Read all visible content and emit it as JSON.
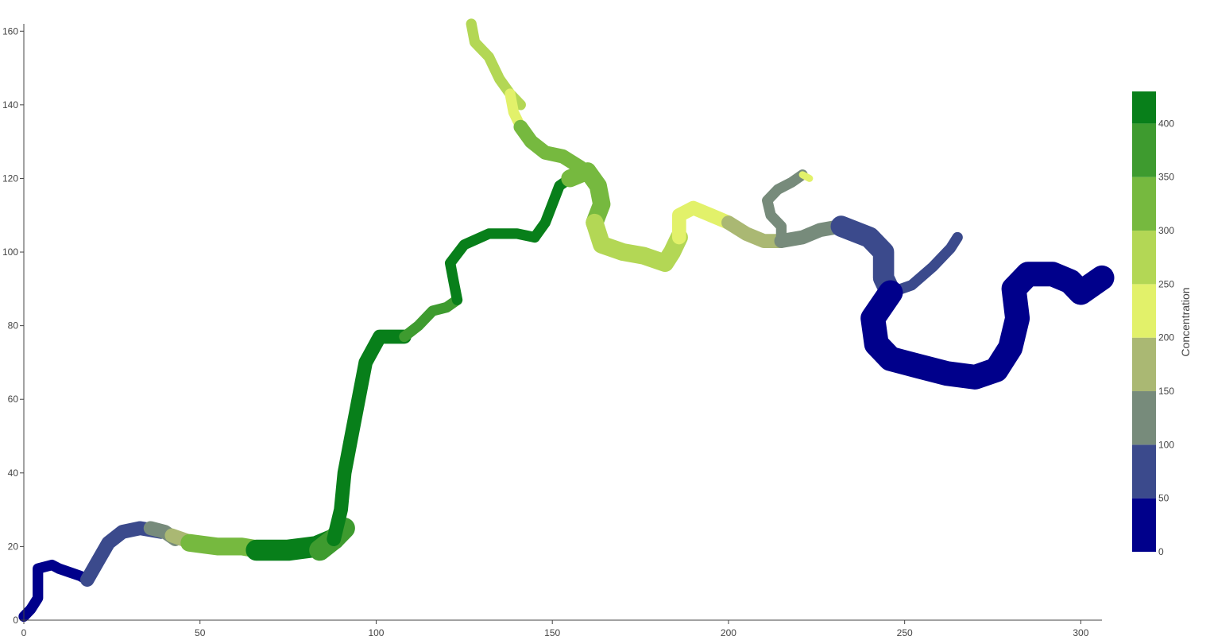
{
  "chart_data": {
    "type": "contour",
    "title": "",
    "xlabel": "",
    "ylabel": "",
    "xlim": [
      0,
      306
    ],
    "ylim": [
      0,
      162
    ],
    "x_ticks": [
      0,
      50,
      100,
      150,
      200,
      250,
      300
    ],
    "y_ticks": [
      0,
      20,
      40,
      60,
      80,
      100,
      120,
      140,
      160
    ],
    "colorbar": {
      "title": "Concentration",
      "range": [
        0,
        430
      ],
      "ticks": [
        0,
        50,
        100,
        150,
        200,
        250,
        300,
        350,
        400
      ],
      "levels": [
        {
          "from": 0,
          "to": 50,
          "color": "#00008b"
        },
        {
          "from": 50,
          "to": 100,
          "color": "#3b4a8c"
        },
        {
          "from": 100,
          "to": 150,
          "color": "#778b7b"
        },
        {
          "from": 150,
          "to": 200,
          "color": "#aab873"
        },
        {
          "from": 200,
          "to": 250,
          "color": "#e2f16a"
        },
        {
          "from": 250,
          "to": 300,
          "color": "#b3d755"
        },
        {
          "from": 300,
          "to": 350,
          "color": "#76b93f"
        },
        {
          "from": 350,
          "to": 400,
          "color": "#3e9b2f"
        },
        {
          "from": 400,
          "to": 430,
          "color": "#087f1a"
        }
      ]
    },
    "path_segments": [
      {
        "value": 20,
        "width": 3,
        "points": [
          [
            0,
            1
          ],
          [
            2,
            3
          ],
          [
            4,
            6
          ],
          [
            4,
            10
          ],
          [
            4,
            14
          ],
          [
            8,
            15
          ],
          [
            10,
            14
          ],
          [
            13,
            13
          ],
          [
            16,
            12
          ],
          [
            18,
            11
          ]
        ]
      },
      {
        "value": 75,
        "width": 4,
        "points": [
          [
            18,
            11
          ],
          [
            21,
            16
          ],
          [
            24,
            21
          ],
          [
            28,
            24
          ],
          [
            33,
            25
          ],
          [
            39,
            24
          ]
        ]
      },
      {
        "value": 125,
        "width": 4,
        "points": [
          [
            36,
            25
          ],
          [
            40,
            24
          ],
          [
            43,
            22
          ]
        ]
      },
      {
        "value": 180,
        "width": 4,
        "points": [
          [
            42,
            23
          ],
          [
            45,
            22
          ],
          [
            48,
            21
          ]
        ]
      },
      {
        "value": 330,
        "width": 5,
        "points": [
          [
            47,
            21
          ],
          [
            55,
            20
          ],
          [
            62,
            20
          ],
          [
            68,
            19
          ]
        ]
      },
      {
        "value": 415,
        "width": 6,
        "points": [
          [
            66,
            19
          ],
          [
            75,
            19
          ],
          [
            83,
            20
          ],
          [
            88,
            22
          ]
        ]
      },
      {
        "value": 375,
        "width": 6,
        "points": [
          [
            84,
            19
          ],
          [
            88,
            22
          ],
          [
            91,
            25
          ]
        ]
      },
      {
        "value": 415,
        "width": 4,
        "points": [
          [
            88,
            22
          ],
          [
            90,
            30
          ],
          [
            91,
            40
          ],
          [
            93,
            50
          ],
          [
            95,
            60
          ],
          [
            97,
            70
          ],
          [
            101,
            77
          ],
          [
            108,
            77
          ]
        ]
      },
      {
        "value": 375,
        "width": 3,
        "points": [
          [
            108,
            77
          ],
          [
            112,
            80
          ],
          [
            116,
            84
          ],
          [
            120,
            85
          ],
          [
            123,
            87
          ]
        ]
      },
      {
        "value": 415,
        "width": 3,
        "points": [
          [
            123,
            87
          ],
          [
            122,
            92
          ],
          [
            121,
            97
          ],
          [
            125,
            102
          ],
          [
            132,
            105
          ],
          [
            140,
            105
          ],
          [
            145,
            104
          ]
        ]
      },
      {
        "value": 415,
        "width": 3,
        "points": [
          [
            145,
            104
          ],
          [
            148,
            108
          ],
          [
            150,
            113
          ],
          [
            152,
            118
          ],
          [
            155,
            120
          ]
        ]
      },
      {
        "value": 330,
        "width": 5,
        "points": [
          [
            155,
            120
          ],
          [
            160,
            122
          ],
          [
            163,
            118
          ],
          [
            164,
            113
          ],
          [
            162,
            108
          ]
        ]
      },
      {
        "value": 275,
        "width": 5,
        "points": [
          [
            162,
            108
          ],
          [
            164,
            102
          ],
          [
            170,
            100
          ],
          [
            176,
            99
          ],
          [
            182,
            97
          ],
          [
            184,
            100
          ],
          [
            186,
            104
          ]
        ]
      },
      {
        "value": 225,
        "width": 4,
        "points": [
          [
            186,
            104
          ],
          [
            186,
            110
          ],
          [
            190,
            112
          ],
          [
            195,
            110
          ],
          [
            200,
            108
          ]
        ]
      },
      {
        "value": 180,
        "width": 4,
        "points": [
          [
            200,
            108
          ],
          [
            205,
            105
          ],
          [
            210,
            103
          ],
          [
            215,
            103
          ]
        ]
      },
      {
        "value": 125,
        "width": 4,
        "points": [
          [
            215,
            103
          ],
          [
            221,
            104
          ],
          [
            226,
            106
          ],
          [
            232,
            107
          ]
        ]
      },
      {
        "value": 125,
        "width": 3,
        "points": [
          [
            215,
            103
          ],
          [
            215,
            107
          ],
          [
            212,
            110
          ],
          [
            211,
            114
          ],
          [
            214,
            117
          ],
          [
            218,
            119
          ],
          [
            221,
            121
          ]
        ]
      },
      {
        "value": 225,
        "width": 2,
        "points": [
          [
            221,
            121
          ],
          [
            223,
            120
          ]
        ]
      },
      {
        "value": 75,
        "width": 6,
        "points": [
          [
            232,
            107
          ],
          [
            240,
            104
          ],
          [
            244,
            100
          ],
          [
            244,
            93
          ],
          [
            246,
            89
          ]
        ]
      },
      {
        "value": 75,
        "width": 3,
        "points": [
          [
            246,
            89
          ],
          [
            252,
            91
          ],
          [
            258,
            96
          ],
          [
            263,
            101
          ],
          [
            265,
            104
          ]
        ]
      },
      {
        "value": 20,
        "width": 7,
        "points": [
          [
            246,
            89
          ],
          [
            241,
            82
          ],
          [
            242,
            75
          ],
          [
            246,
            71
          ],
          [
            254,
            69
          ],
          [
            262,
            67
          ],
          [
            270,
            66
          ],
          [
            276,
            68
          ],
          [
            280,
            74
          ],
          [
            282,
            82
          ],
          [
            281,
            90
          ],
          [
            285,
            94
          ],
          [
            292,
            94
          ],
          [
            297,
            92
          ],
          [
            300,
            89
          ],
          [
            306,
            93
          ]
        ]
      },
      {
        "value": 275,
        "width": 3,
        "points": [
          [
            127,
            162
          ],
          [
            128,
            157
          ],
          [
            132,
            153
          ],
          [
            135,
            147
          ],
          [
            138,
            143
          ],
          [
            141,
            140
          ]
        ]
      },
      {
        "value": 225,
        "width": 3,
        "points": [
          [
            138,
            143
          ],
          [
            139,
            138
          ],
          [
            141,
            134
          ]
        ]
      },
      {
        "value": 330,
        "width": 4,
        "points": [
          [
            141,
            134
          ],
          [
            144,
            130
          ],
          [
            148,
            127
          ],
          [
            153,
            126
          ],
          [
            158,
            123
          ]
        ]
      }
    ]
  }
}
